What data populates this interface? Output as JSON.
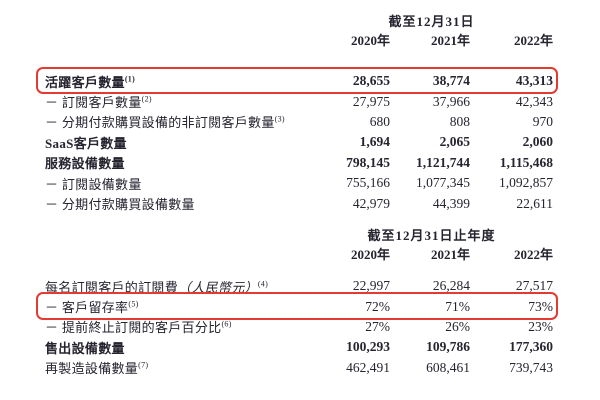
{
  "page": {
    "background_color": "#ffffff",
    "text_color": "#272430",
    "highlight_border_color": "#e23b32"
  },
  "tables": [
    {
      "period_header": "截至12月31日",
      "years": [
        "2020年",
        "2021年",
        "2022年"
      ],
      "rows": [
        {
          "label": "活躍客戶數量",
          "sup": "(1)",
          "bold": true,
          "highlighted": true,
          "values": [
            "28,655",
            "38,774",
            "43,313"
          ]
        },
        {
          "label": "－ 訂閱客戶數量",
          "sup": "(2)",
          "bold": false,
          "highlighted": false,
          "values": [
            "27,975",
            "37,966",
            "42,343"
          ]
        },
        {
          "label": "－ 分期付款購買設備的非訂閱客戶數量",
          "sup": "(3)",
          "bold": false,
          "highlighted": false,
          "values": [
            "680",
            "808",
            "970"
          ]
        },
        {
          "label": "SaaS客戶數量",
          "sup": "",
          "bold": true,
          "highlighted": false,
          "values": [
            "1,694",
            "2,065",
            "2,060"
          ]
        },
        {
          "label": "服務設備數量",
          "sup": "",
          "bold": true,
          "highlighted": false,
          "values": [
            "798,145",
            "1,121,744",
            "1,115,468"
          ]
        },
        {
          "label": "－ 訂閱設備數量",
          "sup": "",
          "bold": false,
          "highlighted": false,
          "values": [
            "755,166",
            "1,077,345",
            "1,092,857"
          ]
        },
        {
          "label": "－ 分期付款購買設備數量",
          "sup": "",
          "bold": false,
          "highlighted": false,
          "values": [
            "42,979",
            "44,399",
            "22,611"
          ]
        }
      ]
    },
    {
      "period_header": "截至12月31日止年度",
      "years": [
        "2020年",
        "2021年",
        "2022年"
      ],
      "rows": [
        {
          "label": "每名訂閱客戶的訂閱費",
          "paren": "（人民幣元）",
          "sup": "(4)",
          "bold": false,
          "highlighted": false,
          "values": [
            "22,997",
            "26,284",
            "27,517"
          ]
        },
        {
          "label": "－ 客戶留存率",
          "sup": "(5)",
          "bold": false,
          "highlighted": true,
          "values": [
            "72%",
            "71%",
            "73%"
          ]
        },
        {
          "label": "－ 提前終止訂閱的客戶百分比",
          "sup": "(6)",
          "bold": false,
          "highlighted": false,
          "values": [
            "27%",
            "26%",
            "23%"
          ]
        },
        {
          "label": "售出設備數量",
          "sup": "",
          "bold": true,
          "highlighted": false,
          "values": [
            "100,293",
            "109,786",
            "177,360"
          ]
        },
        {
          "label": "再製造設備數量",
          "sup": "(7)",
          "bold": false,
          "highlighted": false,
          "values": [
            "462,491",
            "608,461",
            "739,743"
          ]
        }
      ]
    }
  ]
}
